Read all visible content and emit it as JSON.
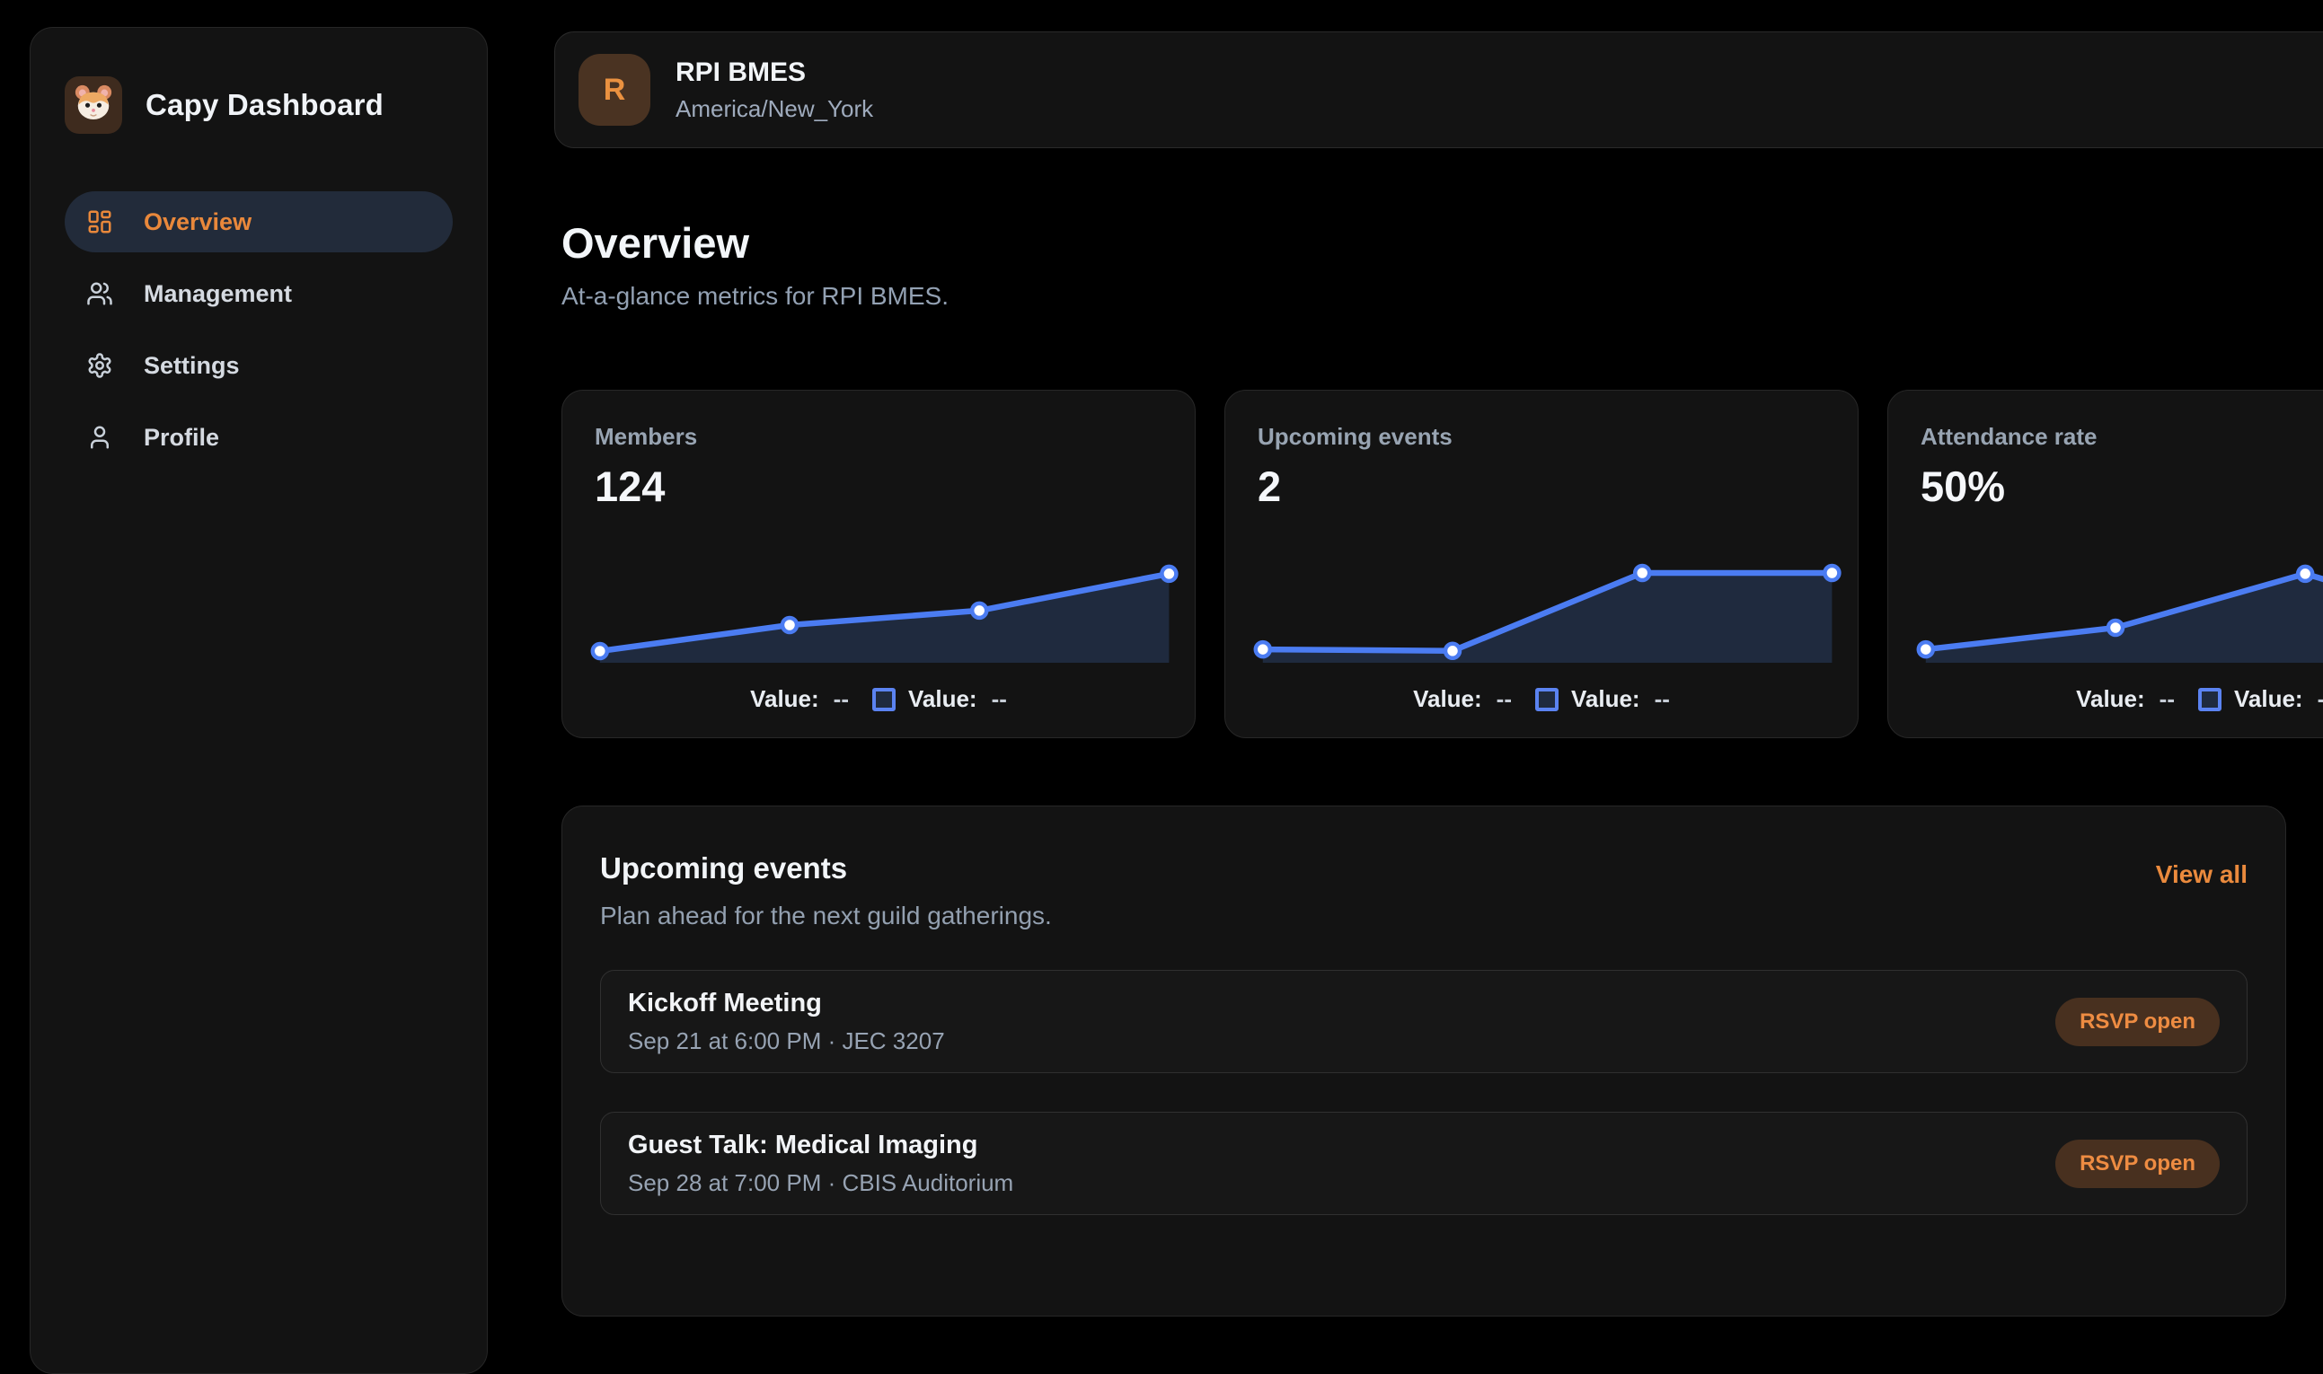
{
  "app": {
    "title": "Capy Dashboard"
  },
  "sidebar": {
    "items": [
      {
        "label": "Overview",
        "icon": "layout-grid-icon",
        "active": true
      },
      {
        "label": "Management",
        "icon": "users-icon",
        "active": false
      },
      {
        "label": "Settings",
        "icon": "gear-icon",
        "active": false
      },
      {
        "label": "Profile",
        "icon": "user-icon",
        "active": false
      }
    ]
  },
  "header": {
    "avatar_letter": "R",
    "title": "RPI BMES",
    "subtitle": "America/New_York"
  },
  "page": {
    "title": "Overview",
    "subtitle": "At-a-glance metrics for RPI BMES."
  },
  "legend": {
    "items": [
      {
        "label": "Value:",
        "value": "--",
        "swatch": false
      },
      {
        "label": "Value:",
        "value": "--",
        "swatch": true
      }
    ]
  },
  "metric_cards": [
    {
      "label": "Members",
      "value": "124",
      "chart": {
        "type": "area",
        "points": [
          {
            "x": 2.7,
            "y": 87.7
          },
          {
            "x": 34.8,
            "y": 65.4
          },
          {
            "x": 66.9,
            "y": 53.0
          },
          {
            "x": 99.0,
            "y": 21.5
          }
        ]
      }
    },
    {
      "label": "Upcoming events",
      "value": "2",
      "chart": {
        "type": "area",
        "points": [
          {
            "x": 2.7,
            "y": 86.2
          },
          {
            "x": 34.8,
            "y": 87.5
          },
          {
            "x": 66.9,
            "y": 20.8
          },
          {
            "x": 99.0,
            "y": 20.8
          }
        ]
      }
    },
    {
      "label": "Attendance rate",
      "value": "50%",
      "chart": {
        "type": "area",
        "points": [
          {
            "x": 2.7,
            "y": 86.2
          },
          {
            "x": 34.8,
            "y": 67.7
          },
          {
            "x": 66.9,
            "y": 21.5
          },
          {
            "x": 99.0,
            "y": 70.0
          }
        ]
      }
    }
  ],
  "events": {
    "title": "Upcoming events",
    "subtitle": "Plan ahead for the next guild gatherings.",
    "view_all": "View all",
    "items": [
      {
        "name": "Kickoff Meeting",
        "details": "Sep 21 at 6:00 PM · JEC 3207",
        "badge": "RSVP open"
      },
      {
        "name": "Guest Talk: Medical Imaging",
        "details": "Sep 28 at 7:00 PM · CBIS Auditorium",
        "badge": "RSVP open"
      }
    ]
  },
  "colors": {
    "accent_orange": "#ea8a3d",
    "chart_line": "#4b7cf2",
    "chart_fill": "#1f2a3e",
    "dot_fill": "#ffffff",
    "badge_bg": "#48301f",
    "badge_text": "#ee8c42"
  }
}
